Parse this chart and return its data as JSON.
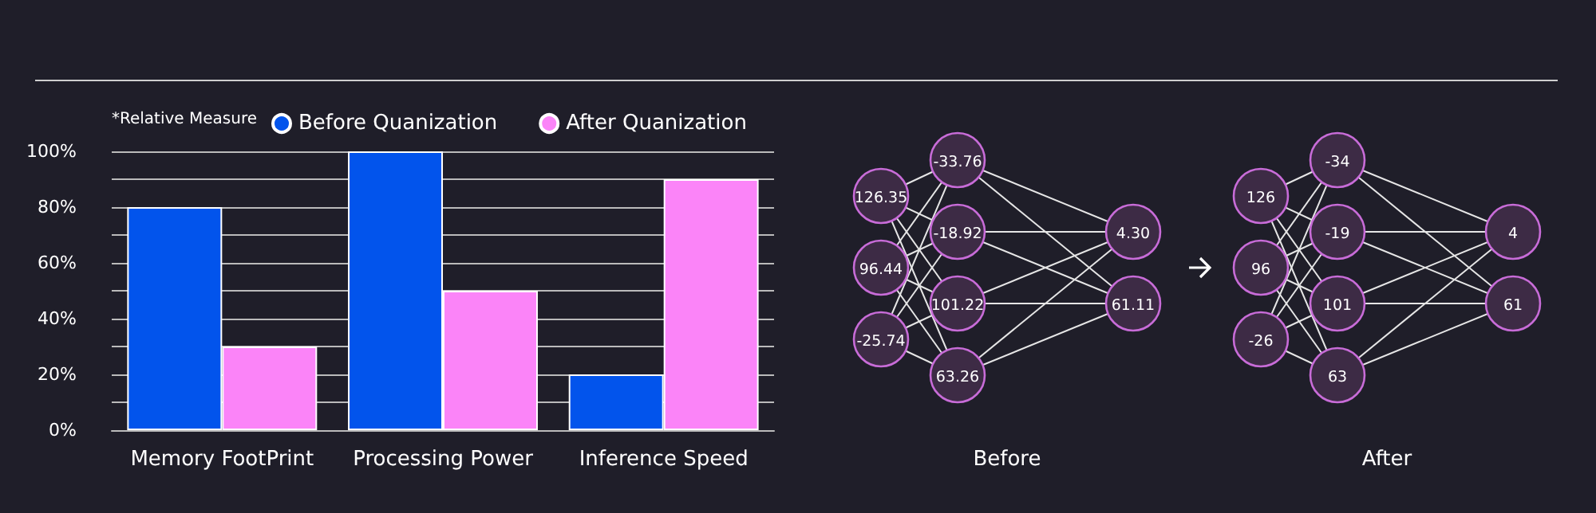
{
  "chart_data": [
    {
      "type": "bar",
      "categories": [
        "Memory FootPrint",
        "Processing Power",
        "Inference Speed"
      ],
      "series": [
        {
          "name": "Before Quanization",
          "color": "#0254ec",
          "values": [
            80,
            100,
            20
          ]
        },
        {
          "name": "After Quanization",
          "color": "#fb84f8",
          "values": [
            30,
            50,
            90
          ]
        }
      ],
      "ylim": [
        0,
        100
      ],
      "yticks": [
        {
          "value": 0,
          "label": "0%"
        },
        {
          "value": 10,
          "label": null
        },
        {
          "value": 20,
          "label": "20%"
        },
        {
          "value": 30,
          "label": null
        },
        {
          "value": 40,
          "label": "40%"
        },
        {
          "value": 50,
          "label": null
        },
        {
          "value": 60,
          "label": "60%"
        },
        {
          "value": 70,
          "label": null
        },
        {
          "value": 80,
          "label": "80%"
        },
        {
          "value": 90,
          "label": null
        },
        {
          "value": 100,
          "label": "100%"
        }
      ],
      "grid": "y",
      "legend": "top",
      "annotations": [
        "*Relative Measure"
      ]
    },
    {
      "type": "other",
      "title": "Before",
      "annotations": [
        "126.35",
        "96.44",
        "-25.74",
        "-33.76",
        "-18.92",
        "101.22",
        "63.26",
        "4.30",
        "61.11"
      ]
    },
    {
      "type": "other",
      "title": "After",
      "annotations": [
        "126",
        "96",
        "-26",
        "-34",
        "-19",
        "101",
        "63",
        "4",
        "61"
      ]
    }
  ]
}
